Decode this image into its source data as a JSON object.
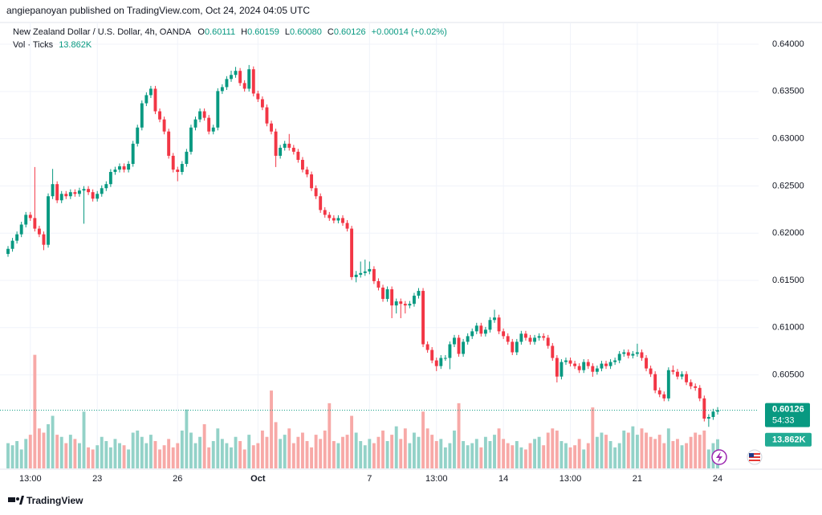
{
  "chart_data": {
    "type": "candlestick",
    "publisher_line": "angiepanoyan published on TradingView.com, Oct 24, 2024 04:05 UTC",
    "title": "New Zealand Dollar / U.S. Dollar, 4h, OANDA",
    "ohlc_labels": [
      "O",
      "H",
      "L",
      "C"
    ],
    "ohlc_value_labels": [
      "0.60111",
      "0.60159",
      "0.60080",
      "0.60126"
    ],
    "change": "+0.00014 (+0.02%)",
    "countdown": "54:33",
    "brand": "TradingView",
    "up_color": "#089981",
    "down_color": "#f23645",
    "ylim": [
      0.5951,
      0.6423
    ],
    "yticks": [
      {
        "value": 0.605,
        "label": "0.60500"
      },
      {
        "value": 0.61,
        "label": "0.61000"
      },
      {
        "value": 0.615,
        "label": "0.61500"
      },
      {
        "value": 0.62,
        "label": "0.62000"
      },
      {
        "value": 0.625,
        "label": "0.62500"
      },
      {
        "value": 0.63,
        "label": "0.63000"
      },
      {
        "value": 0.635,
        "label": "0.63500"
      },
      {
        "value": 0.64,
        "label": "0.64000"
      }
    ],
    "xticks": [
      {
        "value": 5,
        "label": "13:00"
      },
      {
        "value": 20,
        "label": "23"
      },
      {
        "value": 38,
        "label": "26"
      },
      {
        "value": 56,
        "label": "Oct"
      },
      {
        "value": 81,
        "label": "7"
      },
      {
        "value": 96,
        "label": "13:00"
      },
      {
        "value": 111,
        "label": "14"
      },
      {
        "value": 126,
        "label": "13:00"
      },
      {
        "value": 141,
        "label": "21"
      },
      {
        "value": 159,
        "label": "24"
      }
    ],
    "grid": true,
    "series": [
      {
        "open": [
          0.6178,
          0.61834,
          0.6192,
          0.61988,
          0.62091,
          0.62194,
          0.6216,
          0.62048,
          0.61988,
          0.61877,
          0.62391,
          0.62519,
          0.62348,
          0.62416,
          0.62391,
          0.62434,
          0.62416,
          0.62451,
          0.62468,
          0.62434,
          0.62365,
          0.62416,
          0.62476,
          0.62519,
          0.62648,
          0.62673,
          0.62708,
          0.62673,
          0.62733,
          0.62947,
          0.63118,
          0.63375,
          0.63461,
          0.63529,
          0.6329,
          0.63204,
          0.63076,
          0.62819,
          0.62673,
          0.62648,
          0.62733,
          0.62862,
          0.63118,
          0.63204,
          0.6329,
          0.63221,
          0.63076,
          0.63118,
          0.63504,
          0.63546,
          0.63632,
          0.63675,
          0.63718,
          0.63589,
          0.63529,
          0.63735,
          0.63478,
          0.63418,
          0.63332,
          0.63161,
          0.63076,
          0.62819,
          0.62904,
          0.62947,
          0.62904,
          0.62862,
          0.62776,
          0.62673,
          0.62622,
          0.62476,
          0.62391,
          0.62245,
          0.62194,
          0.6216,
          0.62134,
          0.6216,
          0.62108,
          0.62048,
          0.61535,
          0.6156,
          0.61578,
          0.61595,
          0.6162,
          0.61492,
          0.61424,
          0.61304,
          0.61406,
          0.61235,
          0.61278,
          0.61252,
          0.61235,
          0.61252,
          0.61338,
          0.61389,
          0.60824,
          0.60764,
          0.60653,
          0.60593,
          0.60679,
          0.60679,
          0.60824,
          0.60893,
          0.60722,
          0.6085,
          0.6091,
          0.60961,
          0.61021,
          0.60936,
          0.60978,
          0.61081,
          0.61107,
          0.60961,
          0.6091,
          0.6085,
          0.60739,
          0.6085,
          0.60936,
          0.60893,
          0.6085,
          0.60893,
          0.6091,
          0.60893,
          0.60807,
          0.60679,
          0.60482,
          0.60636,
          0.60653,
          0.60619,
          0.60593,
          0.6055,
          0.60636,
          0.60593,
          0.60533,
          0.60568,
          0.60619,
          0.60593,
          0.60636,
          0.60653,
          0.60722,
          0.60739,
          0.60704,
          0.60722,
          0.60739,
          0.60679,
          0.60568,
          0.60508,
          0.60336,
          0.60294,
          0.60251,
          0.6055,
          0.60533,
          0.60482,
          0.60508,
          0.60422,
          0.60379,
          0.60362,
          0.60251,
          0.60037,
          0.60054,
          0.60111
        ],
        "high": [
          0.61864,
          0.6195,
          0.62018,
          0.62121,
          0.62224,
          0.62224,
          0.627,
          0.62078,
          0.62018,
          0.62421,
          0.6268,
          0.62549,
          0.62446,
          0.62446,
          0.62464,
          0.62464,
          0.62481,
          0.62498,
          0.62498,
          0.62464,
          0.62446,
          0.62506,
          0.62549,
          0.62678,
          0.62703,
          0.62738,
          0.62738,
          0.62763,
          0.62977,
          0.63148,
          0.63405,
          0.63491,
          0.63559,
          0.63559,
          0.6332,
          0.63234,
          0.63106,
          0.62849,
          0.62703,
          0.62763,
          0.62892,
          0.63148,
          0.63234,
          0.6332,
          0.6332,
          0.63251,
          0.63148,
          0.63534,
          0.63576,
          0.63662,
          0.6372,
          0.6376,
          0.63748,
          0.63619,
          0.6378,
          0.63765,
          0.63508,
          0.63448,
          0.63362,
          0.63191,
          0.63106,
          0.62934,
          0.62977,
          0.6305,
          0.62934,
          0.62892,
          0.62806,
          0.62703,
          0.62652,
          0.62506,
          0.62421,
          0.62275,
          0.62224,
          0.6219,
          0.6219,
          0.6219,
          0.62138,
          0.62078,
          0.616,
          0.617,
          0.6172,
          0.617,
          0.6165,
          0.61522,
          0.61454,
          0.61436,
          0.61436,
          0.61308,
          0.61308,
          0.61282,
          0.61282,
          0.61368,
          0.61419,
          0.61419,
          0.60854,
          0.60794,
          0.60683,
          0.60709,
          0.60709,
          0.60854,
          0.60923,
          0.60923,
          0.6088,
          0.6094,
          0.60991,
          0.61051,
          0.61051,
          0.61008,
          0.61111,
          0.6119,
          0.61137,
          0.60991,
          0.6094,
          0.6088,
          0.6088,
          0.60966,
          0.60966,
          0.60923,
          0.60923,
          0.6094,
          0.6094,
          0.60923,
          0.60837,
          0.60709,
          0.60666,
          0.60683,
          0.60683,
          0.60649,
          0.60623,
          0.60666,
          0.60666,
          0.60623,
          0.60598,
          0.60649,
          0.60649,
          0.60666,
          0.60683,
          0.60752,
          0.60769,
          0.60769,
          0.60752,
          0.6083,
          0.60769,
          0.60709,
          0.60598,
          0.60538,
          0.60366,
          0.60324,
          0.6058,
          0.606,
          0.60563,
          0.60538,
          0.60538,
          0.60452,
          0.60409,
          0.60392,
          0.60281,
          0.60084,
          0.60141,
          0.60159
        ],
        "low": [
          0.6175,
          0.61804,
          0.6189,
          0.61958,
          0.62061,
          0.6213,
          0.62018,
          0.61958,
          0.6182,
          0.61847,
          0.62361,
          0.62318,
          0.62318,
          0.62361,
          0.62361,
          0.62386,
          0.62386,
          0.621,
          0.62404,
          0.62335,
          0.62335,
          0.62386,
          0.62446,
          0.62489,
          0.62618,
          0.62643,
          0.62643,
          0.62643,
          0.62703,
          0.62917,
          0.63088,
          0.63345,
          0.63431,
          0.6326,
          0.63174,
          0.63046,
          0.62789,
          0.62643,
          0.6255,
          0.62618,
          0.62703,
          0.62832,
          0.63088,
          0.63174,
          0.63191,
          0.63046,
          0.63046,
          0.63088,
          0.63474,
          0.63516,
          0.63602,
          0.63645,
          0.63559,
          0.63499,
          0.63499,
          0.63448,
          0.63388,
          0.63302,
          0.63131,
          0.63046,
          0.627,
          0.62789,
          0.62874,
          0.62874,
          0.62832,
          0.62746,
          0.62643,
          0.62592,
          0.62446,
          0.62361,
          0.62215,
          0.62164,
          0.6213,
          0.62104,
          0.62104,
          0.62078,
          0.62018,
          0.61505,
          0.6148,
          0.6153,
          0.61548,
          0.61565,
          0.61462,
          0.61394,
          0.61274,
          0.61274,
          0.611,
          0.6115,
          0.611,
          0.6115,
          0.61205,
          0.61222,
          0.61308,
          0.60794,
          0.60734,
          0.60623,
          0.6054,
          0.60563,
          0.60649,
          0.6056,
          0.60794,
          0.60692,
          0.60692,
          0.6082,
          0.6088,
          0.60931,
          0.60906,
          0.60906,
          0.60948,
          0.61051,
          0.60931,
          0.6088,
          0.6082,
          0.60709,
          0.60709,
          0.6082,
          0.60863,
          0.6082,
          0.6082,
          0.60863,
          0.60863,
          0.60777,
          0.60649,
          0.6042,
          0.60452,
          0.60606,
          0.60589,
          0.60563,
          0.6052,
          0.6052,
          0.60563,
          0.6048,
          0.60503,
          0.60538,
          0.60563,
          0.60563,
          0.60606,
          0.60623,
          0.60692,
          0.60674,
          0.60674,
          0.60692,
          0.60649,
          0.60538,
          0.60478,
          0.60306,
          0.60264,
          0.60221,
          0.60221,
          0.60503,
          0.60452,
          0.60452,
          0.60392,
          0.60349,
          0.60332,
          0.60221,
          0.60007,
          0.5995,
          0.60024,
          0.6008
        ],
        "close": [
          0.61834,
          0.6192,
          0.61988,
          0.62091,
          0.62194,
          0.6216,
          0.62048,
          0.61988,
          0.61877,
          0.62391,
          0.62519,
          0.62348,
          0.62416,
          0.62391,
          0.62434,
          0.62416,
          0.62451,
          0.62468,
          0.62434,
          0.62365,
          0.62416,
          0.62476,
          0.62519,
          0.62648,
          0.62673,
          0.62708,
          0.62673,
          0.62733,
          0.62947,
          0.63118,
          0.63375,
          0.63461,
          0.63529,
          0.6329,
          0.63204,
          0.63076,
          0.62819,
          0.62673,
          0.62648,
          0.62733,
          0.62862,
          0.63118,
          0.63204,
          0.6329,
          0.63221,
          0.63076,
          0.63118,
          0.63504,
          0.63546,
          0.63632,
          0.63675,
          0.63718,
          0.63589,
          0.63529,
          0.63735,
          0.63478,
          0.63418,
          0.63332,
          0.63161,
          0.63076,
          0.62819,
          0.62904,
          0.62947,
          0.62904,
          0.62862,
          0.62776,
          0.62673,
          0.62622,
          0.62476,
          0.62391,
          0.62245,
          0.62194,
          0.6216,
          0.62134,
          0.6216,
          0.62108,
          0.62048,
          0.61535,
          0.6156,
          0.61578,
          0.61595,
          0.6162,
          0.61492,
          0.61424,
          0.61304,
          0.61406,
          0.61235,
          0.61278,
          0.61252,
          0.61235,
          0.61252,
          0.61338,
          0.61389,
          0.60824,
          0.60764,
          0.60653,
          0.60593,
          0.60679,
          0.60679,
          0.60824,
          0.60893,
          0.60722,
          0.6085,
          0.6091,
          0.60961,
          0.61021,
          0.60936,
          0.60978,
          0.61081,
          0.61107,
          0.60961,
          0.6091,
          0.6085,
          0.60739,
          0.6085,
          0.60936,
          0.60893,
          0.6085,
          0.60893,
          0.6091,
          0.60893,
          0.60807,
          0.60679,
          0.60482,
          0.60636,
          0.60653,
          0.60619,
          0.60593,
          0.6055,
          0.60636,
          0.60593,
          0.60533,
          0.60568,
          0.60619,
          0.60593,
          0.60636,
          0.60653,
          0.60722,
          0.60739,
          0.60704,
          0.60722,
          0.60739,
          0.60679,
          0.60568,
          0.60508,
          0.60336,
          0.60294,
          0.60251,
          0.6055,
          0.60533,
          0.60482,
          0.60508,
          0.60422,
          0.60379,
          0.60362,
          0.60251,
          0.60037,
          0.60054,
          0.60111,
          0.60126
        ]
      }
    ],
    "volume": {
      "name": "Vol · Ticks",
      "current_label": "13.862K",
      "up_color": "#93d2c8",
      "down_color": "#f7a9a7",
      "label_color": "#22ab94",
      "ylim": [
        0,
        212000
      ],
      "values": [
        12000,
        11000,
        13000,
        9000,
        14000,
        16000,
        54000,
        19000,
        17000,
        21000,
        25000,
        16000,
        15000,
        12000,
        16000,
        14000,
        12000,
        27000,
        10000,
        9000,
        11000,
        15000,
        13000,
        10000,
        14000,
        12000,
        11000,
        9000,
        17000,
        18000,
        15000,
        12000,
        16000,
        13000,
        9000,
        11000,
        14000,
        10000,
        12000,
        18000,
        28000,
        17000,
        12000,
        15000,
        21000,
        10000,
        13000,
        19000,
        14000,
        12000,
        10000,
        15000,
        13000,
        9000,
        16000,
        11000,
        12000,
        18000,
        15000,
        37000,
        22000,
        14000,
        16000,
        19000,
        12000,
        15000,
        17000,
        13000,
        10000,
        16000,
        14000,
        18000,
        31000,
        13000,
        12000,
        15000,
        16000,
        25000,
        17000,
        13000,
        11000,
        14000,
        12000,
        15000,
        18000,
        13000,
        16000,
        20000,
        14000,
        19000,
        12000,
        17000,
        15000,
        27000,
        19000,
        16000,
        13000,
        14000,
        10000,
        12000,
        18000,
        31000,
        13000,
        11000,
        12000,
        14000,
        10000,
        15000,
        13000,
        16000,
        19000,
        14000,
        12000,
        11000,
        13000,
        10000,
        9000,
        12000,
        14000,
        15000,
        11000,
        17000,
        19000,
        18000,
        13000,
        12000,
        10000,
        11000,
        14000,
        9000,
        12000,
        29000,
        15000,
        17000,
        16000,
        13000,
        10000,
        12000,
        18000,
        17000,
        20000,
        16000,
        19000,
        17000,
        15000,
        14000,
        16000,
        12000,
        19000,
        13000,
        14000,
        11000,
        12000,
        15000,
        17000,
        16000,
        18000,
        9000,
        12000,
        13862
      ]
    }
  }
}
